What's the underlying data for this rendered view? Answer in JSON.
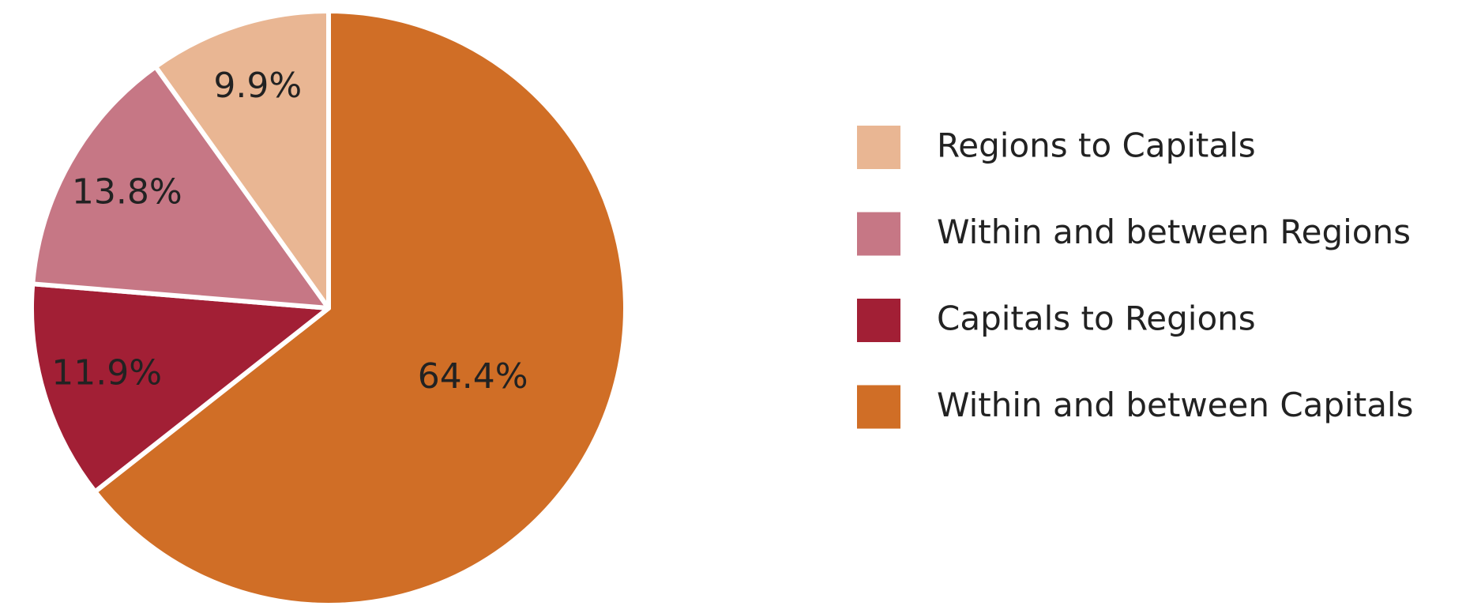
{
  "chart_data": {
    "type": "pie",
    "categories": [
      "Within and between Capitals",
      "Capitals to Regions",
      "Within and between Regions",
      "Regions to Capitals"
    ],
    "values": [
      64.4,
      11.9,
      13.8,
      9.9
    ],
    "value_labels": [
      "64.4%",
      "11.9%",
      "13.8%",
      "9.9%"
    ],
    "colors": [
      "#D06E26",
      "#A21F35",
      "#C67785",
      "#E9B693"
    ],
    "legend": "right"
  }
}
